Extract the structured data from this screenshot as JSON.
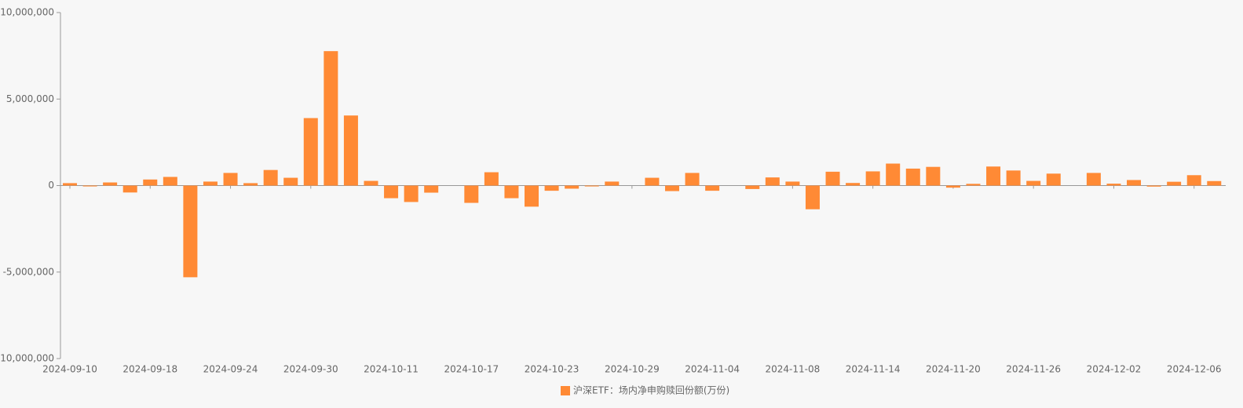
{
  "chart_data": {
    "type": "bar",
    "categories": [
      "2024-09-10",
      null,
      null,
      null,
      "2024-09-18",
      null,
      null,
      null,
      "2024-09-24",
      null,
      null,
      null,
      "2024-09-30",
      null,
      null,
      null,
      "2024-10-11",
      null,
      null,
      null,
      "2024-10-17",
      null,
      null,
      null,
      "2024-10-23",
      null,
      null,
      null,
      "2024-10-29",
      null,
      null,
      null,
      "2024-11-04",
      null,
      null,
      null,
      "2024-11-08",
      null,
      null,
      null,
      "2024-11-14",
      null,
      null,
      null,
      "2024-11-20",
      null,
      null,
      null,
      "2024-11-26",
      null,
      null,
      null,
      "2024-12-02",
      null,
      null,
      null,
      "2024-12-06",
      null
    ],
    "series": [
      {
        "name": "沪深ETF：场内净申购赎回份额(万份)",
        "color": "#ff8a35",
        "values": [
          140000,
          -50000,
          180000,
          -400000,
          350000,
          500000,
          -5300000,
          230000,
          730000,
          140000,
          900000,
          450000,
          3900000,
          7770000,
          4050000,
          270000,
          -730000,
          -950000,
          -410000,
          0,
          -1000000,
          770000,
          -730000,
          -1220000,
          -300000,
          -180000,
          -50000,
          230000,
          0,
          450000,
          -320000,
          730000,
          -300000,
          0,
          -200000,
          470000,
          230000,
          -1370000,
          800000,
          150000,
          820000,
          1270000,
          980000,
          1080000,
          -120000,
          100000,
          1100000,
          870000,
          270000,
          690000,
          0,
          730000,
          110000,
          320000,
          -60000,
          220000,
          600000,
          260000
        ]
      }
    ],
    "ylim": [
      -10000000,
      10000000
    ],
    "yticks": [
      {
        "value": -10000000,
        "label": "-10,000,000"
      },
      {
        "value": -5000000,
        "label": "-5,000,000"
      },
      0,
      {
        "value": 5000000,
        "label": "5,000,000"
      },
      {
        "value": 10000000,
        "label": "10,000,000"
      }
    ],
    "legend": "bottom"
  }
}
